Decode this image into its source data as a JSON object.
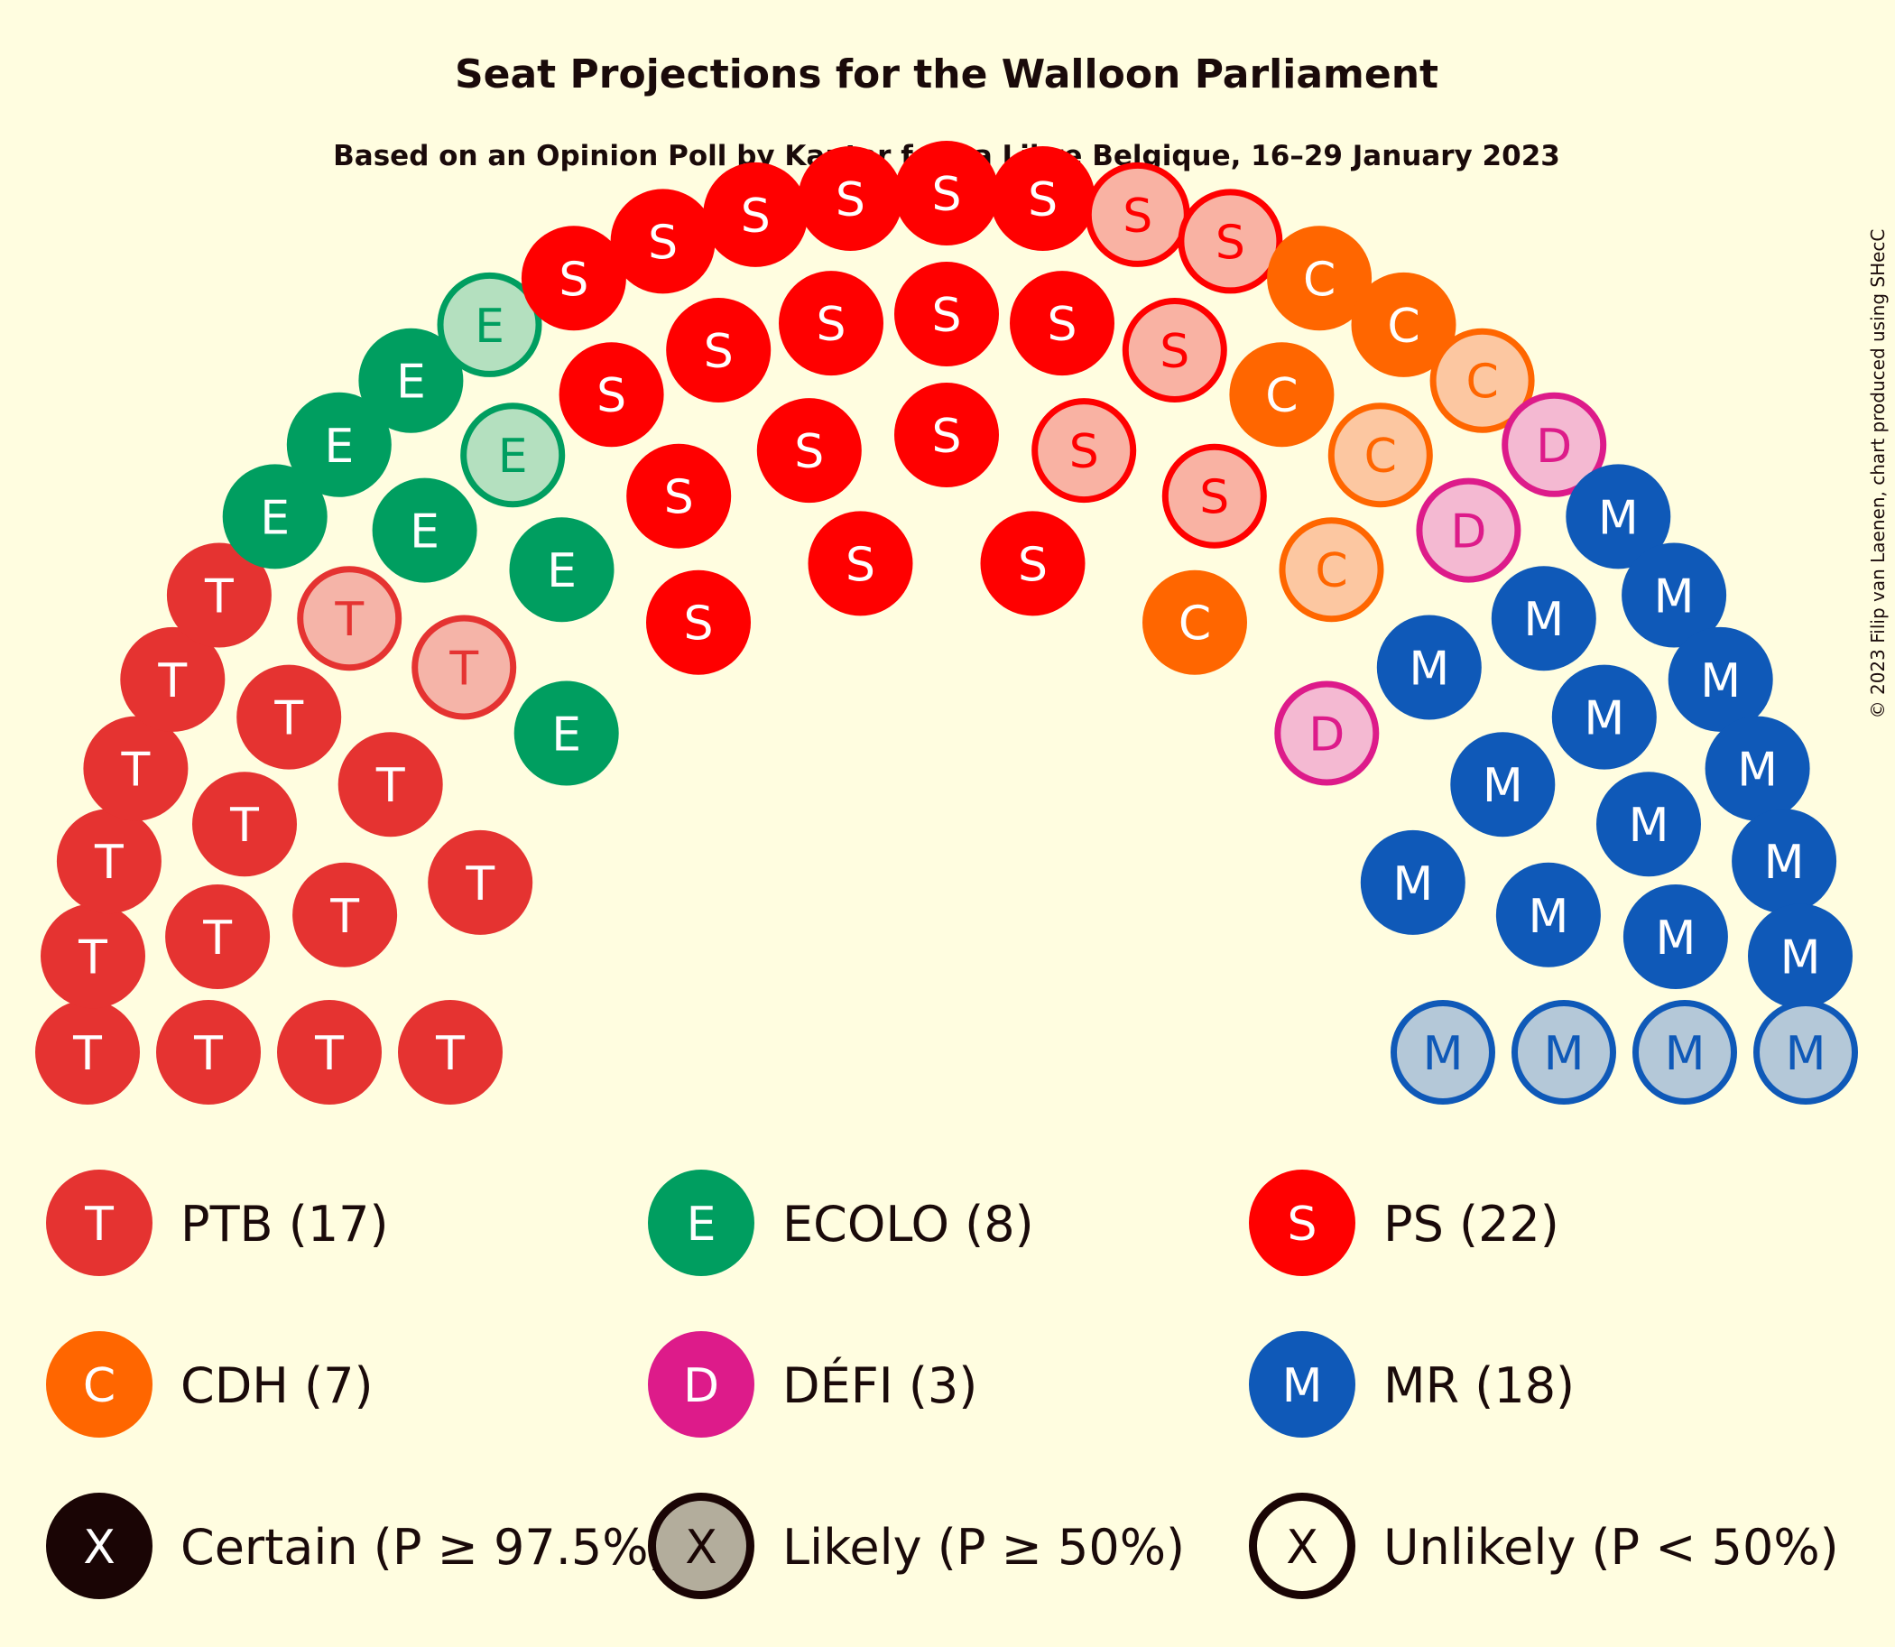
{
  "title": "Seat Projections for the Walloon Parliament",
  "subtitle": "Based on an Opinion Poll by Kantar for La Libre Belgique, 16–29 January 2023",
  "credit": "© 2023 Filip van Laenen, chart produced using SHecC",
  "chart_data": {
    "type": "parliament",
    "total_seats": 75,
    "parties": [
      {
        "letter": "T",
        "label": "PTB (17)",
        "seats": 17,
        "certain": 15,
        "likely": 0,
        "unlikely": 2,
        "color": "#e53331",
        "light": "#f5b4a8"
      },
      {
        "letter": "E",
        "label": "ECOLO (8)",
        "seats": 8,
        "certain": 6,
        "likely": 0,
        "unlikely": 2,
        "color": "#009e60",
        "light": "#b4e0bf"
      },
      {
        "letter": "S",
        "label": "PS (22)",
        "seats": 22,
        "certain": 17,
        "likely": 0,
        "unlikely": 5,
        "color": "#ff0000",
        "light": "#f9b2a3"
      },
      {
        "letter": "C",
        "label": "CDH (7)",
        "seats": 7,
        "certain": 4,
        "likely": 0,
        "unlikely": 3,
        "color": "#ff6600",
        "light": "#fcc7a1"
      },
      {
        "letter": "D",
        "label": "DÉFI (3)",
        "seats": 3,
        "certain": 0,
        "likely": 0,
        "unlikely": 3,
        "color": "#dd1b8a",
        "light": "#f4b9d2"
      },
      {
        "letter": "M",
        "label": "MR (18)",
        "seats": 18,
        "certain": 14,
        "likely": 0,
        "unlikely": 4,
        "color": "#0f59b8",
        "light": "#b4c8d8"
      }
    ],
    "probability_legend": [
      {
        "letter": "X",
        "label": "Certain (P ≥ 97.5%)"
      },
      {
        "letter": "X",
        "label": "Likely (P ≥ 50%)"
      },
      {
        "letter": "X",
        "label": "Unlikely (P < 50%)"
      }
    ]
  }
}
